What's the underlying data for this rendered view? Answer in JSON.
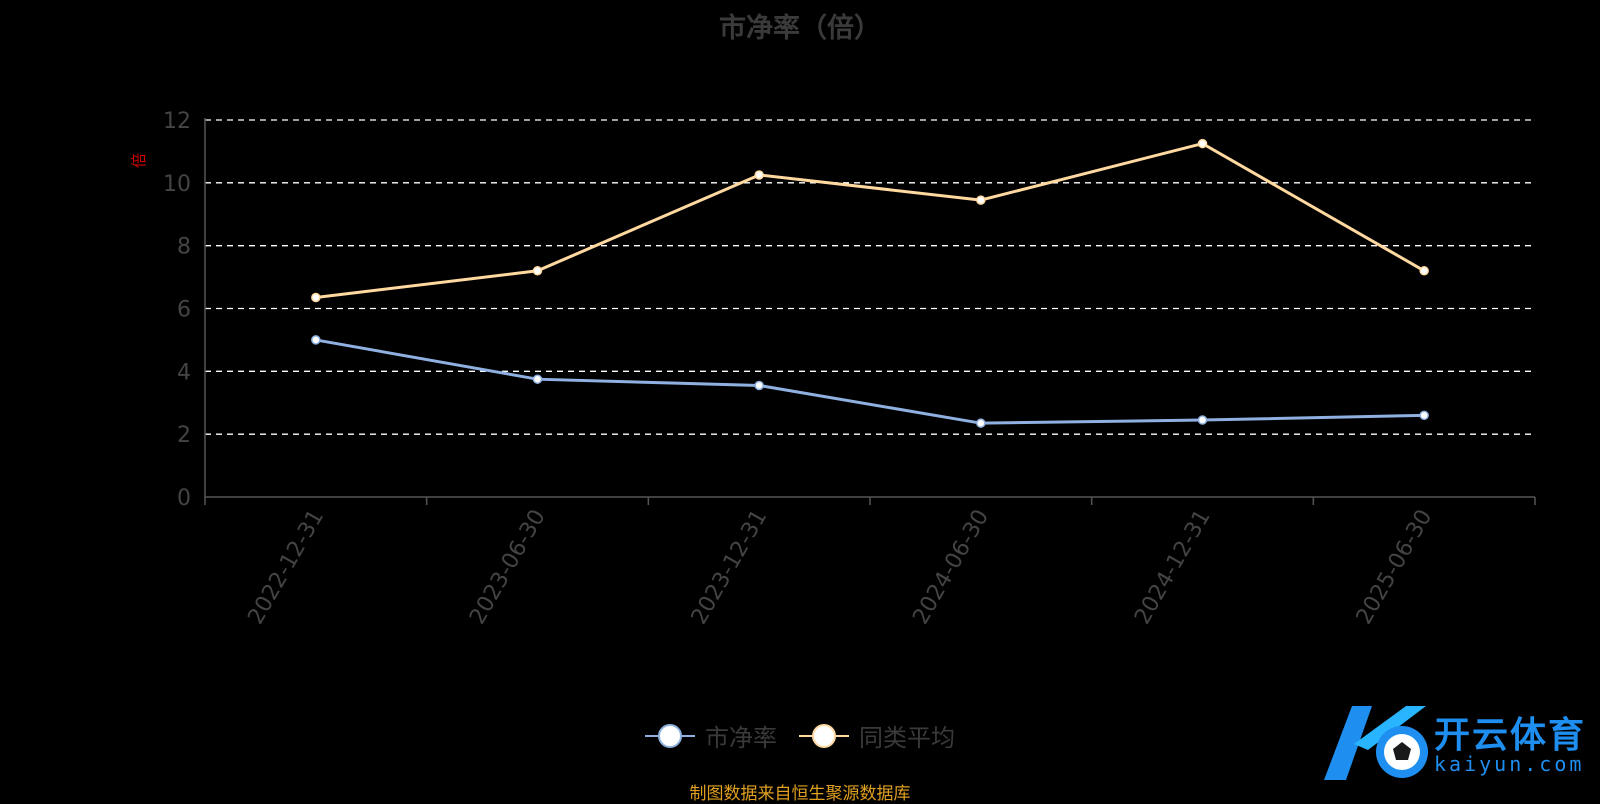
{
  "title": "市净率（倍）",
  "unit_label": "倍",
  "source_note": "制图数据来自恒生聚源数据库",
  "watermark": {
    "title": "开云体育",
    "subtitle": "kaiyun.com"
  },
  "colors": {
    "series1": "#8fb0e0",
    "series2": "#ffd9a0",
    "grid": "#ffffff",
    "axis": "#555555",
    "tick_text": "#444444"
  },
  "chart_data": {
    "type": "line",
    "title": "市净率（倍）",
    "x": [
      "2022-12-31",
      "2023-06-30",
      "2023-12-31",
      "2024-06-30",
      "2024-12-31",
      "2025-06-30"
    ],
    "ylim": [
      0,
      12
    ],
    "yticks": [
      0,
      2,
      4,
      6,
      8,
      10,
      12
    ],
    "ylabel": "倍",
    "grid": true,
    "legend_position": "bottom-center",
    "series": [
      {
        "name": "市净率",
        "values": [
          5.0,
          3.75,
          3.55,
          2.35,
          2.45,
          2.6
        ]
      },
      {
        "name": "同类平均",
        "values": [
          6.35,
          7.2,
          10.25,
          9.45,
          11.25,
          7.2
        ]
      }
    ]
  }
}
